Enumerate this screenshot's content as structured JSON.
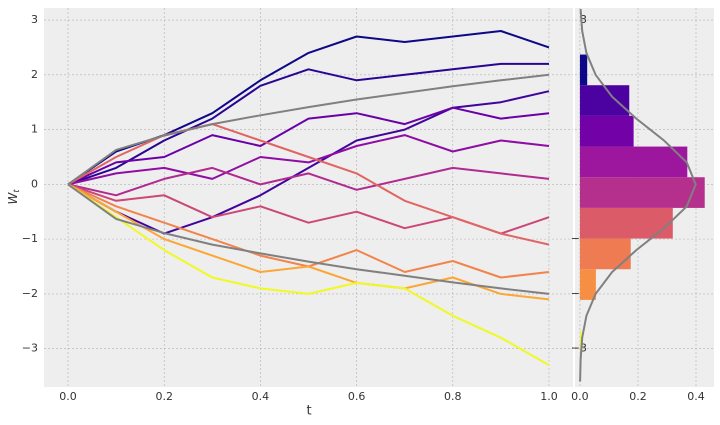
{
  "chart_data": [
    {
      "type": "line",
      "xlabel": "t",
      "ylabel": {
        "base": "W",
        "sub": "t"
      },
      "x": [
        0,
        0.1,
        0.2,
        0.3,
        0.4,
        0.5,
        0.6,
        0.7,
        0.8,
        0.9,
        1.0
      ],
      "series": [
        {
          "color": "#0d0887",
          "values": [
            0,
            0.6,
            0.9,
            1.3,
            1.9,
            2.4,
            2.7,
            2.6,
            2.7,
            2.8,
            2.5
          ]
        },
        {
          "color": "#2a0593",
          "values": [
            0,
            0.3,
            0.8,
            1.2,
            1.8,
            2.1,
            1.9,
            2.0,
            2.1,
            2.2,
            2.2
          ]
        },
        {
          "color": "#41049d",
          "values": [
            0,
            -0.5,
            -0.9,
            -0.6,
            -0.2,
            0.3,
            0.8,
            1.0,
            1.4,
            1.5,
            1.7
          ]
        },
        {
          "color": "#6a00a8",
          "values": [
            0,
            0.4,
            0.5,
            0.9,
            0.7,
            1.2,
            1.3,
            1.1,
            1.4,
            1.2,
            1.3
          ]
        },
        {
          "color": "#8f0da4",
          "values": [
            0,
            0.2,
            0.3,
            0.1,
            0.5,
            0.4,
            0.7,
            0.9,
            0.6,
            0.8,
            0.7
          ]
        },
        {
          "color": "#b12a90",
          "values": [
            0,
            -0.2,
            0.1,
            0.3,
            0.0,
            0.2,
            -0.1,
            0.1,
            0.3,
            0.2,
            0.1
          ]
        },
        {
          "color": "#cc4778",
          "values": [
            0,
            -0.3,
            -0.2,
            -0.6,
            -0.4,
            -0.7,
            -0.5,
            -0.8,
            -0.6,
            -0.9,
            -0.6
          ]
        },
        {
          "color": "#e16462",
          "values": [
            0,
            0.5,
            0.9,
            1.1,
            0.8,
            0.5,
            0.2,
            -0.3,
            -0.6,
            -0.9,
            -1.1
          ]
        },
        {
          "color": "#f2844b",
          "values": [
            0,
            -0.4,
            -0.7,
            -1.0,
            -1.3,
            -1.5,
            -1.2,
            -1.6,
            -1.4,
            -1.7,
            -1.6
          ]
        },
        {
          "color": "#fca636",
          "values": [
            0,
            -0.5,
            -1.0,
            -1.3,
            -1.6,
            -1.5,
            -1.8,
            -1.9,
            -1.7,
            -2.0,
            -2.1
          ]
        },
        {
          "color": "#f0f921",
          "values": [
            0,
            -0.6,
            -1.2,
            -1.7,
            -1.9,
            -2.0,
            -1.8,
            -1.9,
            -2.4,
            -2.8,
            -3.3
          ]
        },
        {
          "color": "#808080",
          "values": [
            0,
            0.63,
            0.89,
            1.1,
            1.26,
            1.41,
            1.55,
            1.67,
            1.79,
            1.9,
            2.0
          ]
        },
        {
          "color": "#808080",
          "values": [
            0,
            -0.63,
            -0.89,
            -1.1,
            -1.26,
            -1.41,
            -1.55,
            -1.67,
            -1.79,
            -1.9,
            -2.0
          ]
        }
      ],
      "xlim": [
        -0.05,
        1.05
      ],
      "ylim": [
        -3.7,
        3.22
      ],
      "xticks": [
        {
          "value": 0,
          "label": "0.0"
        },
        {
          "value": 0.2,
          "label": "0.2"
        },
        {
          "value": 0.4,
          "label": "0.4"
        },
        {
          "value": 0.6,
          "label": "0.6"
        },
        {
          "value": 0.8,
          "label": "0.8"
        },
        {
          "value": 1.0,
          "label": "1.0"
        }
      ],
      "yticks": [
        {
          "value": -3,
          "label": "−3"
        },
        {
          "value": -2,
          "label": "−2"
        },
        {
          "value": -1,
          "label": "−1"
        },
        0,
        1,
        2,
        3
      ],
      "grid": true
    },
    {
      "type": "histogram",
      "bins": [
        -3.23,
        -2.67,
        -2.11,
        -1.55,
        -0.99,
        -0.43,
        0.13,
        0.69,
        1.25,
        1.81,
        2.37
      ],
      "values": [
        0.005,
        0,
        0.055,
        0.175,
        0.32,
        0.43,
        0.37,
        0.185,
        0.17,
        0.025
      ],
      "colors": [
        "#f0f921",
        "#fdc328",
        "#f68f44",
        "#ee7b51",
        "#db5c68",
        "#b52f8c",
        "#9c179e",
        "#7201a8",
        "#4c02a1",
        "#0d0887"
      ],
      "curve": {
        "color": "#808080",
        "y": [
          -3.6,
          -3.2,
          -2.8,
          -2.4,
          -2.0,
          -1.6,
          -1.2,
          -0.8,
          -0.4,
          0,
          0.4,
          0.8,
          1.2,
          1.6,
          2.0,
          2.4,
          2.8,
          3.2
        ],
        "density": [
          0.0006,
          0.0024,
          0.0079,
          0.0224,
          0.054,
          0.1109,
          0.1942,
          0.2897,
          0.3683,
          0.3989,
          0.3683,
          0.2897,
          0.1942,
          0.1109,
          0.054,
          0.0224,
          0.0079,
          0.0024
        ]
      },
      "xlim": [
        -0.017,
        0.462
      ],
      "ylim": [
        -3.7,
        3.22
      ],
      "xticks": [
        {
          "value": 0,
          "label": "0.0"
        },
        {
          "value": 0.2,
          "label": "0.2"
        },
        {
          "value": 0.4,
          "label": "0.4"
        }
      ],
      "yticks": [
        {
          "value": -3,
          "label": "−3"
        },
        {
          "value": -2,
          "label": "−2"
        },
        {
          "value": -1,
          "label": "−1"
        },
        0,
        1,
        2,
        3
      ],
      "grid": true
    }
  ]
}
